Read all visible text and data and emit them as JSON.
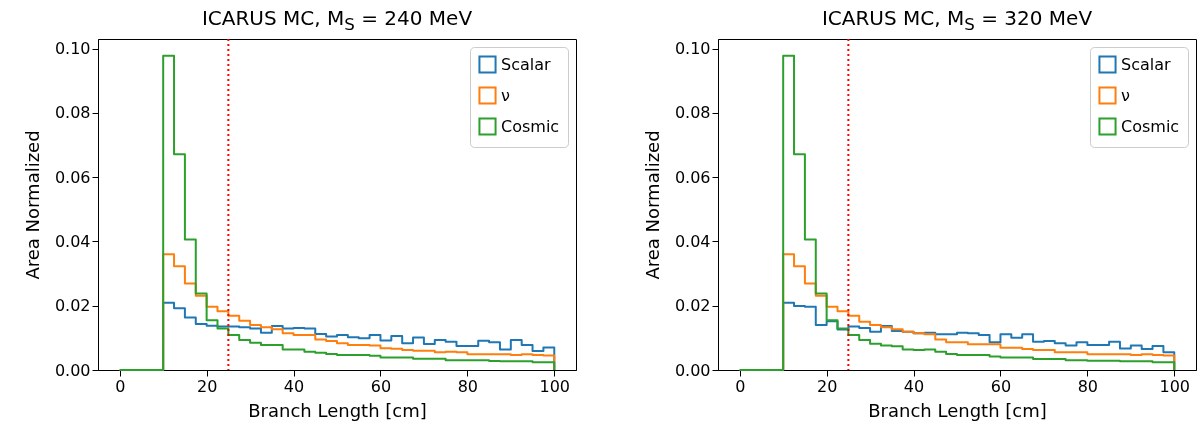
{
  "chart_data": [
    {
      "type": "histogram",
      "title": "ICARUS MC, M$_{S}$ = 240 MeV",
      "xlabel": "Branch Length [cm]",
      "ylabel": "Area Normalized",
      "bins": [
        0,
        2.5,
        5,
        7.5,
        10,
        12.5,
        15,
        17.5,
        20,
        22.5,
        25,
        27.5,
        30,
        32.5,
        35,
        37.5,
        40,
        42.5,
        45,
        47.5,
        50,
        52.5,
        55,
        57.5,
        60,
        62.5,
        65,
        67.5,
        70,
        72.5,
        75,
        77.5,
        80,
        82.5,
        85,
        87.5,
        90,
        92.5,
        95,
        97.5,
        100
      ],
      "series": [
        {
          "name": "Scalar",
          "color": "#1f77b4",
          "values": [
            0,
            0,
            0,
            0,
            0.0209,
            0.0192,
            0.0163,
            0.0143,
            0.0138,
            0.0135,
            0.0135,
            0.0133,
            0.0129,
            0.0116,
            0.0137,
            0.0129,
            0.0131,
            0.0129,
            0.0112,
            0.0104,
            0.0109,
            0.0102,
            0.0099,
            0.0109,
            0.0092,
            0.0106,
            0.0083,
            0.0101,
            0.0081,
            0.0093,
            0.0088,
            0.0075,
            0.0075,
            0.0091,
            0.0086,
            0.0064,
            0.0093,
            0.0078,
            0.0059,
            0.007
          ]
        },
        {
          "name": "ν",
          "color": "#ff7f0e",
          "values": [
            0,
            0,
            0,
            0,
            0.036,
            0.0323,
            0.0269,
            0.0231,
            0.0197,
            0.0183,
            0.0169,
            0.0153,
            0.014,
            0.0133,
            0.0127,
            0.0114,
            0.0109,
            0.0109,
            0.0095,
            0.009,
            0.0083,
            0.0078,
            0.0078,
            0.0076,
            0.0068,
            0.0066,
            0.0062,
            0.006,
            0.006,
            0.0055,
            0.0057,
            0.0055,
            0.0049,
            0.0049,
            0.0049,
            0.0049,
            0.0047,
            0.0049,
            0.0047,
            0.0045
          ]
        },
        {
          "name": "Cosmic",
          "color": "#2ca02c",
          "values": [
            0,
            0,
            0,
            0,
            0.0978,
            0.0671,
            0.0406,
            0.0238,
            0.0155,
            0.0129,
            0.0109,
            0.0093,
            0.0085,
            0.0078,
            0.0078,
            0.0064,
            0.0064,
            0.0057,
            0.0054,
            0.005,
            0.0047,
            0.0047,
            0.0047,
            0.0044,
            0.0039,
            0.0039,
            0.0039,
            0.0035,
            0.0035,
            0.0035,
            0.003,
            0.003,
            0.003,
            0.003,
            0.0028,
            0.0027,
            0.0027,
            0.0027,
            0.0024,
            0.0024
          ]
        }
      ],
      "xlim": [
        -5,
        105
      ],
      "xticks": [
        0,
        20,
        40,
        60,
        80,
        100
      ],
      "ylim": [
        0,
        0.103
      ],
      "yticks": [
        {
          "value": 0,
          "label": "0.00"
        },
        {
          "value": 0.02,
          "label": "0.02"
        },
        {
          "value": 0.04,
          "label": "0.04"
        },
        {
          "value": 0.06,
          "label": "0.06"
        },
        {
          "value": 0.08,
          "label": "0.08"
        },
        {
          "value": 0.1,
          "label": "0.10"
        }
      ],
      "legend": "top right",
      "ref_lines": [
        {
          "axis": "x",
          "value": 25,
          "color": "#ff0000",
          "line_style": "dotted"
        }
      ]
    },
    {
      "type": "histogram",
      "title": "ICARUS MC, M$_{S}$ = 320 MeV",
      "xlabel": "Branch Length [cm]",
      "ylabel": "Area Normalized",
      "bins": [
        0,
        2.5,
        5,
        7.5,
        10,
        12.5,
        15,
        17.5,
        20,
        22.5,
        25,
        27.5,
        30,
        32.5,
        35,
        37.5,
        40,
        42.5,
        45,
        47.5,
        50,
        52.5,
        55,
        57.5,
        60,
        62.5,
        65,
        67.5,
        70,
        72.5,
        75,
        77.5,
        80,
        82.5,
        85,
        87.5,
        90,
        92.5,
        95,
        97.5,
        100
      ],
      "series": [
        {
          "name": "Scalar",
          "color": "#1f77b4",
          "values": [
            0,
            0,
            0,
            0,
            0.0209,
            0.0199,
            0.0197,
            0.014,
            0.0152,
            0.0126,
            0.0135,
            0.0131,
            0.0119,
            0.0137,
            0.0121,
            0.0119,
            0.0114,
            0.0116,
            0.0111,
            0.0111,
            0.0116,
            0.0114,
            0.0109,
            0.0086,
            0.0111,
            0.01,
            0.0111,
            0.0088,
            0.009,
            0.0083,
            0.0076,
            0.0086,
            0.0078,
            0.0078,
            0.0088,
            0.0067,
            0.0076,
            0.0065,
            0.0075,
            0.0055
          ]
        },
        {
          "name": "ν",
          "color": "#ff7f0e",
          "values": [
            0,
            0,
            0,
            0,
            0.036,
            0.0323,
            0.0269,
            0.0231,
            0.0197,
            0.0183,
            0.0169,
            0.015,
            0.014,
            0.0133,
            0.0127,
            0.0119,
            0.0114,
            0.0111,
            0.0095,
            0.0086,
            0.0086,
            0.008,
            0.008,
            0.008,
            0.0069,
            0.0069,
            0.0065,
            0.0062,
            0.0062,
            0.0055,
            0.0055,
            0.0055,
            0.0049,
            0.0049,
            0.0049,
            0.0049,
            0.0047,
            0.0049,
            0.0047,
            0.0045
          ]
        },
        {
          "name": "Cosmic",
          "color": "#2ca02c",
          "values": [
            0,
            0,
            0,
            0,
            0.0978,
            0.0671,
            0.0406,
            0.0238,
            0.0155,
            0.0129,
            0.0109,
            0.0093,
            0.0082,
            0.0076,
            0.0074,
            0.0064,
            0.0062,
            0.0064,
            0.0057,
            0.005,
            0.0047,
            0.0047,
            0.0047,
            0.0042,
            0.0039,
            0.0039,
            0.0039,
            0.0034,
            0.0034,
            0.0034,
            0.003,
            0.003,
            0.0029,
            0.0029,
            0.0029,
            0.0027,
            0.0027,
            0.0027,
            0.0024,
            0.0024
          ]
        }
      ],
      "xlim": [
        -5,
        105
      ],
      "xticks": [
        0,
        20,
        40,
        60,
        80,
        100
      ],
      "ylim": [
        0,
        0.103
      ],
      "yticks": [
        {
          "value": 0,
          "label": "0.00"
        },
        {
          "value": 0.02,
          "label": "0.02"
        },
        {
          "value": 0.04,
          "label": "0.04"
        },
        {
          "value": 0.06,
          "label": "0.06"
        },
        {
          "value": 0.08,
          "label": "0.08"
        },
        {
          "value": 0.1,
          "label": "0.10"
        }
      ],
      "legend": "top right",
      "ref_lines": [
        {
          "axis": "x",
          "value": 25,
          "color": "#ff0000",
          "line_style": "dotted"
        }
      ]
    }
  ]
}
